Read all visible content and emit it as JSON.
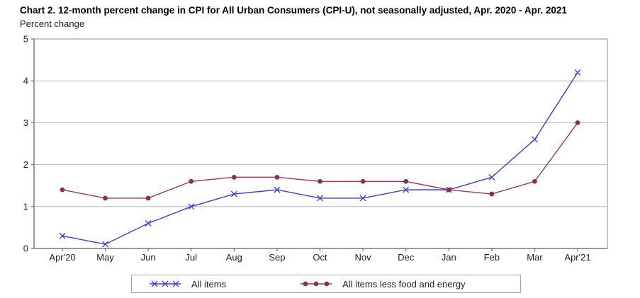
{
  "chart_data": {
    "type": "line",
    "title": "Chart 2. 12-month percent change in CPI for All Urban Consumers (CPI-U), not seasonally adjusted, Apr. 2020 - Apr. 2021",
    "ylabel": "Percent change",
    "xlabel": "",
    "categories": [
      "Apr'20",
      "May",
      "Jun",
      "Jul",
      "Aug",
      "Sep",
      "Oct",
      "Nov",
      "Dec",
      "Jan",
      "Feb",
      "Mar",
      "Apr'21"
    ],
    "y_ticks": [
      0,
      1,
      2,
      3,
      4,
      5
    ],
    "ylim": [
      0,
      5
    ],
    "grid": true,
    "legend_position": "bottom",
    "series": [
      {
        "name": "All items",
        "marker": "x",
        "color": "#3c3cd9",
        "values": [
          0.3,
          0.1,
          0.6,
          1.0,
          1.3,
          1.4,
          1.2,
          1.2,
          1.4,
          1.4,
          1.7,
          2.6,
          4.2
        ]
      },
      {
        "name": "All items less food and energy",
        "marker": "circle",
        "color": "#9a3a56",
        "marker_color": "#8c2f4c",
        "values": [
          1.4,
          1.2,
          1.2,
          1.6,
          1.7,
          1.7,
          1.6,
          1.6,
          1.6,
          1.4,
          1.3,
          1.6,
          3.0
        ]
      }
    ],
    "colors": {
      "gridline": "#b5b5b5",
      "plot_border": "#8c8c8c",
      "axis": "#5a5a5a",
      "text": "#1f1f1f"
    }
  }
}
